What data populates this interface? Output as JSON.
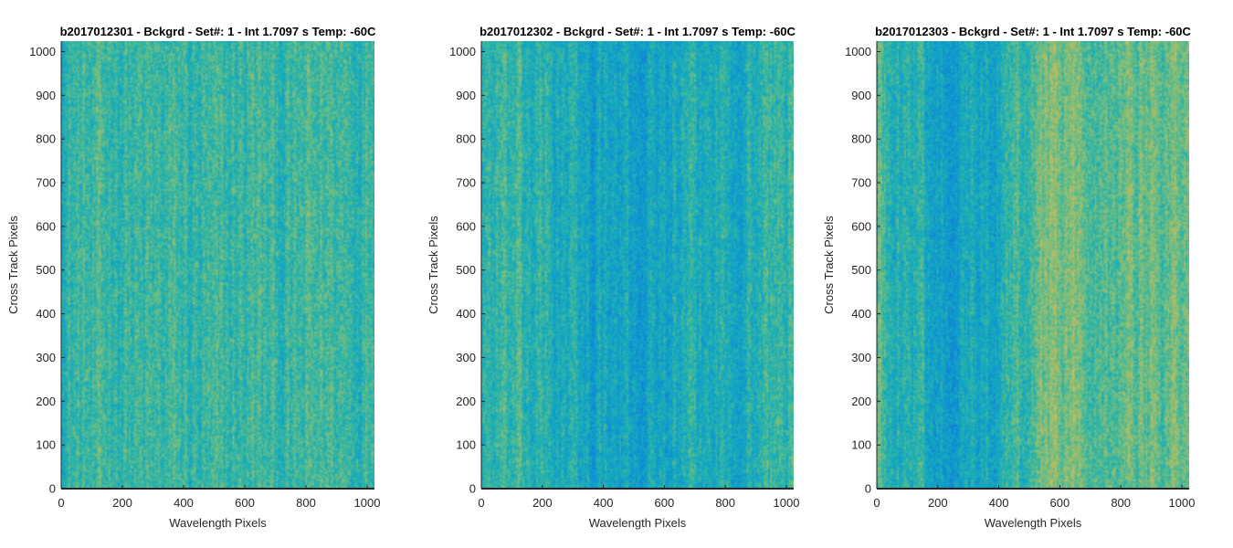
{
  "chart_data": [
    {
      "type": "heatmap",
      "title": "b2017012301 - Bckgrd - Set#: 1 - Int 1.7097 s Temp: -60C",
      "xlabel": "Wavelength Pixels",
      "ylabel": "Cross Track Pixels",
      "xlim": [
        0,
        1024
      ],
      "ylim": [
        0,
        1024
      ],
      "xticks": [
        0,
        200,
        400,
        600,
        800,
        1000
      ],
      "yticks": [
        0,
        100,
        200,
        300,
        400,
        500,
        600,
        700,
        800,
        900,
        1000
      ],
      "colormap": "parula",
      "column_profile": [
        0.5,
        0.52,
        0.5,
        0.53,
        0.52,
        0.5,
        0.51,
        0.52,
        0.5,
        0.49,
        0.51,
        0.52,
        0.52,
        0.51,
        0.5,
        0.52,
        0.54,
        0.53,
        0.52,
        0.55
      ]
    },
    {
      "type": "heatmap",
      "title": "b2017012302 - Bckgrd - Set#: 1 - Int 1.7097 s Temp: -60C",
      "xlabel": "Wavelength Pixels",
      "ylabel": "Cross Track Pixels",
      "xlim": [
        0,
        1024
      ],
      "ylim": [
        0,
        1024
      ],
      "xticks": [
        0,
        200,
        400,
        600,
        800,
        1000
      ],
      "yticks": [
        0,
        100,
        200,
        300,
        400,
        500,
        600,
        700,
        800,
        900,
        1000
      ],
      "colormap": "parula",
      "column_profile": [
        0.5,
        0.5,
        0.49,
        0.48,
        0.47,
        0.45,
        0.43,
        0.41,
        0.4,
        0.4,
        0.41,
        0.42,
        0.43,
        0.44,
        0.45,
        0.46,
        0.47,
        0.49,
        0.51,
        0.53
      ]
    },
    {
      "type": "heatmap",
      "title": "b2017012303 - Bckgrd - Set#: 1 - Int 1.7097 s Temp: -60C",
      "xlabel": "Wavelength Pixels",
      "ylabel": "Cross Track Pixels",
      "xlim": [
        0,
        1024
      ],
      "ylim": [
        0,
        1024
      ],
      "xticks": [
        0,
        200,
        400,
        600,
        800,
        1000
      ],
      "yticks": [
        0,
        100,
        200,
        300,
        400,
        500,
        600,
        700,
        800,
        900,
        1000
      ],
      "colormap": "parula",
      "column_profile": [
        0.55,
        0.52,
        0.48,
        0.44,
        0.42,
        0.41,
        0.42,
        0.44,
        0.48,
        0.55,
        0.6,
        0.62,
        0.61,
        0.59,
        0.58,
        0.59,
        0.6,
        0.6,
        0.61,
        0.62
      ]
    }
  ]
}
